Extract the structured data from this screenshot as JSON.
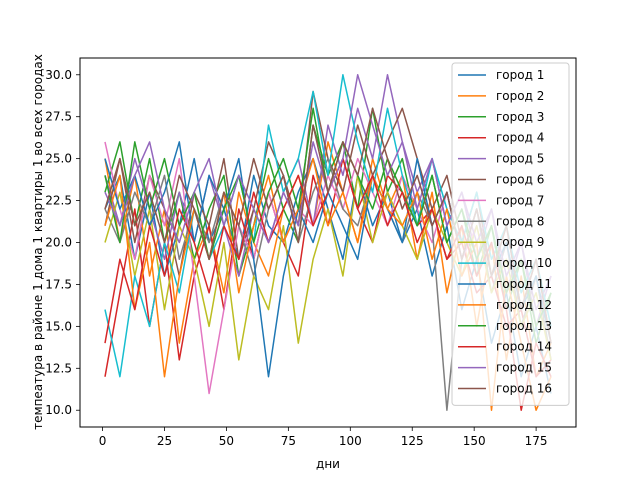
{
  "chart_data": {
    "type": "line",
    "title": "",
    "xlabel": "дни",
    "ylabel": "темпеатура в районе 1 дома 1 квартиры 1 во всех городах",
    "xlim": [
      -9.1,
      191.1
    ],
    "ylim": [
      9.0,
      31.0
    ],
    "x_ticks": [
      0,
      25,
      50,
      75,
      100,
      125,
      150,
      175
    ],
    "y_ticks": [
      10.0,
      12.5,
      15.0,
      17.5,
      20.0,
      22.5,
      25.0,
      27.5,
      30.0
    ],
    "x_tick_labels": [
      "0",
      "25",
      "50",
      "75",
      "100",
      "125",
      "150",
      "175"
    ],
    "y_tick_labels": [
      "10.0",
      "12.5",
      "15.0",
      "17.5",
      "20.0",
      "22.5",
      "25.0",
      "27.5",
      "30.0"
    ],
    "grid": false,
    "legend_position": "upper-right",
    "x": [
      1,
      7,
      13,
      19,
      25,
      31,
      37,
      43,
      49,
      55,
      61,
      67,
      73,
      79,
      85,
      91,
      97,
      103,
      109,
      115,
      121,
      127,
      133,
      139,
      145,
      151,
      157,
      163,
      169,
      175,
      181
    ],
    "series": [
      {
        "name": "город 1",
        "color": "#1f77b4",
        "values": [
          22,
          24,
          19,
          23,
          18,
          21,
          25,
          20,
          22,
          19,
          24,
          21,
          20,
          23,
          25,
          22,
          19,
          24,
          21,
          23,
          20,
          22,
          18,
          21,
          16,
          19,
          14,
          17,
          12,
          15,
          11
        ]
      },
      {
        "name": "город 2",
        "color": "#ff7f0e",
        "values": [
          25,
          20,
          24,
          18,
          22,
          14,
          19,
          21,
          17,
          23,
          20,
          18,
          22,
          24,
          21,
          26,
          23,
          20,
          25,
          22,
          24,
          19,
          23,
          17,
          21,
          15,
          20,
          13,
          18,
          12,
          14
        ]
      },
      {
        "name": "город 3",
        "color": "#2ca02c",
        "values": [
          23,
          26,
          21,
          25,
          20,
          23,
          19,
          22,
          24,
          18,
          21,
          25,
          22,
          20,
          27,
          24,
          26,
          22,
          28,
          23,
          25,
          21,
          24,
          20,
          22,
          18,
          21,
          16,
          19,
          14,
          17
        ]
      },
      {
        "name": "город 4",
        "color": "#d62728",
        "values": [
          12,
          17,
          22,
          15,
          20,
          13,
          18,
          21,
          16,
          22,
          19,
          23,
          20,
          18,
          24,
          21,
          25,
          22,
          20,
          24,
          23,
          21,
          22,
          19,
          20,
          17,
          18,
          15,
          16,
          12,
          13
        ]
      },
      {
        "name": "город 5",
        "color": "#9467bd",
        "values": [
          24,
          21,
          25,
          22,
          19,
          23,
          20,
          24,
          21,
          18,
          22,
          20,
          23,
          25,
          21,
          27,
          24,
          28,
          25,
          30,
          26,
          23,
          25,
          21,
          23,
          19,
          22,
          17,
          20,
          15,
          18
        ]
      },
      {
        "name": "город 6",
        "color": "#8c564b",
        "values": [
          21,
          25,
          20,
          24,
          22,
          18,
          23,
          21,
          25,
          19,
          22,
          26,
          24,
          21,
          29,
          25,
          23,
          27,
          24,
          26,
          28,
          25,
          22,
          24,
          20,
          23,
          18,
          21,
          16,
          19,
          14
        ]
      },
      {
        "name": "город 7",
        "color": "#e377c2",
        "values": [
          26,
          22,
          19,
          24,
          21,
          25,
          18,
          11,
          16,
          21,
          19,
          23,
          20,
          22,
          21,
          24,
          22,
          25,
          23,
          21,
          24,
          22,
          20,
          23,
          19,
          21,
          17,
          20,
          15,
          18,
          13
        ]
      },
      {
        "name": "город 8",
        "color": "#7f7f7f",
        "values": [
          22,
          20,
          23,
          21,
          24,
          19,
          22,
          20,
          23,
          21,
          18,
          22,
          24,
          20,
          23,
          25,
          22,
          21,
          24,
          22,
          20,
          23,
          21,
          10,
          19,
          22,
          17,
          20,
          15,
          18,
          13
        ]
      },
      {
        "name": "город 9",
        "color": "#bcbd22",
        "values": [
          20,
          23,
          18,
          22,
          16,
          21,
          19,
          15,
          20,
          13,
          18,
          16,
          21,
          14,
          19,
          22,
          18,
          24,
          20,
          23,
          21,
          19,
          22,
          20,
          18,
          21,
          17,
          19,
          15,
          17,
          13
        ]
      },
      {
        "name": "город 10",
        "color": "#17becf",
        "values": [
          16,
          12,
          18,
          15,
          20,
          17,
          22,
          19,
          21,
          24,
          20,
          27,
          23,
          25,
          29,
          24,
          30,
          26,
          23,
          28,
          24,
          21,
          25,
          22,
          20,
          23,
          19,
          21,
          17,
          19,
          15
        ]
      },
      {
        "name": "город 11",
        "color": "#1f77b4",
        "values": [
          25,
          22,
          24,
          21,
          23,
          26,
          20,
          24,
          22,
          25,
          19,
          12,
          18,
          22,
          20,
          23,
          21,
          19,
          24,
          22,
          20,
          25,
          21,
          23,
          19,
          22,
          18,
          20,
          16,
          18,
          14
        ]
      },
      {
        "name": "город 12",
        "color": "#ff7f0e",
        "values": [
          21,
          24,
          16,
          20,
          12,
          18,
          22,
          19,
          23,
          17,
          21,
          24,
          20,
          22,
          25,
          21,
          23,
          20,
          24,
          22,
          21,
          23,
          19,
          22,
          18,
          20,
          10,
          18,
          14,
          10,
          12
        ]
      },
      {
        "name": "город 13",
        "color": "#2ca02c",
        "values": [
          24,
          20,
          26,
          22,
          25,
          21,
          23,
          19,
          22,
          24,
          20,
          23,
          25,
          22,
          28,
          23,
          26,
          24,
          22,
          25,
          23,
          21,
          24,
          20,
          22,
          19,
          21,
          17,
          19,
          15,
          17
        ]
      },
      {
        "name": "город 14",
        "color": "#d62728",
        "values": [
          14,
          19,
          16,
          21,
          18,
          22,
          20,
          17,
          21,
          19,
          23,
          20,
          22,
          24,
          21,
          23,
          25,
          22,
          24,
          21,
          23,
          20,
          22,
          19,
          21,
          18,
          20,
          16,
          10,
          14,
          12
        ]
      },
      {
        "name": "город 15",
        "color": "#9467bd",
        "values": [
          23,
          21,
          24,
          26,
          22,
          20,
          23,
          25,
          21,
          24,
          22,
          20,
          23,
          21,
          26,
          23,
          25,
          30,
          27,
          24,
          26,
          22,
          25,
          21,
          23,
          20,
          22,
          18,
          20,
          16,
          18
        ]
      },
      {
        "name": "город 16",
        "color": "#8c564b",
        "values": [
          22,
          25,
          21,
          23,
          20,
          24,
          22,
          19,
          23,
          21,
          25,
          22,
          24,
          20,
          27,
          23,
          26,
          24,
          28,
          25,
          22,
          24,
          21,
          23,
          19,
          22,
          18,
          21,
          16,
          19,
          14
        ]
      }
    ]
  }
}
